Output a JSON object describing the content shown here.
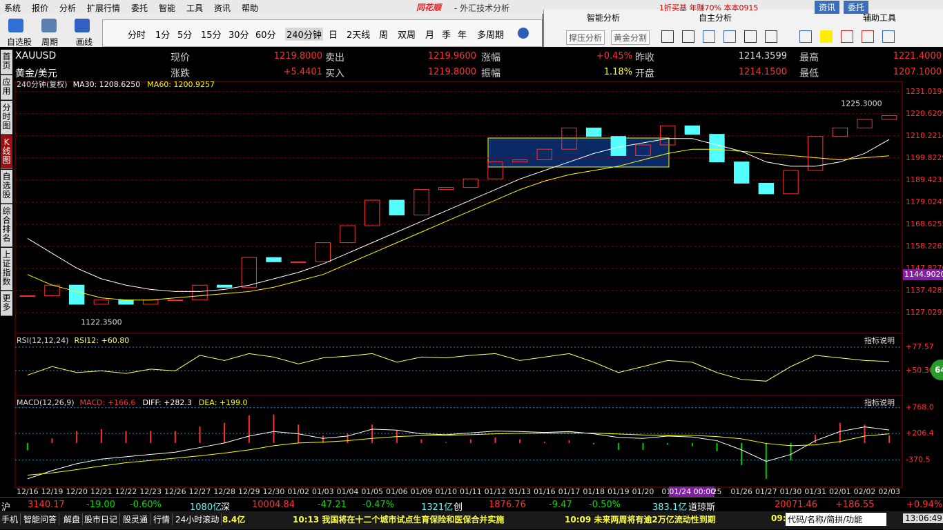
{
  "menu": [
    "系统",
    "报价",
    "分析",
    "扩展行情",
    "委托",
    "智能",
    "工具",
    "资讯",
    "帮助"
  ],
  "app_title": "同花顺",
  "window_title": "- 外汇技术分析",
  "top_right": {
    "promo": "1折买基 年赚70%  本本0915",
    "buttons": [
      "资讯",
      "委托"
    ]
  },
  "toolbar_left": [
    "自选股",
    "周期",
    "画线"
  ],
  "periods": [
    "分时",
    "1分",
    "5分",
    "15分",
    "30分",
    "60分",
    "240分钟",
    "日",
    "2天线",
    "周",
    "双周",
    "月",
    "季",
    "年",
    "多周期"
  ],
  "panel_tabs": [
    "智能分析",
    "自主分析",
    "辅助工具"
  ],
  "smart_buttons": [
    "撑压分析",
    "黄金分割"
  ],
  "quote": {
    "symbol": "XAUUSD",
    "name": "黄金/美元",
    "rows": [
      [
        [
          "现价",
          "1219.8000"
        ],
        [
          "卖出",
          "1219.9600"
        ],
        [
          "涨幅",
          "+0.45%"
        ],
        [
          "昨收",
          "1214.3599"
        ],
        [
          "最高",
          "1221.4000"
        ]
      ],
      [
        [
          "涨跌",
          "+5.4401"
        ],
        [
          "买入",
          "1219.8000"
        ],
        [
          "振幅",
          "1.18%"
        ],
        [
          "开盘",
          "1214.1500"
        ],
        [
          "最低",
          "1207.1000"
        ]
      ]
    ]
  },
  "side_tabs": [
    "首页",
    "应用",
    "分时图",
    "K线图",
    "自选股",
    "综合排名",
    "上证指数",
    "更多"
  ],
  "badge": "64",
  "chart_data": [
    {
      "type": "candlestick",
      "title": "240分钟(复权)",
      "categories": [
        "12/16",
        "12/19",
        "12/20",
        "12/21",
        "12/22",
        "12/23",
        "12/26",
        "12/27",
        "12/28",
        "12/29",
        "12/30",
        "01/02",
        "01/03",
        "01/04",
        "01/05",
        "01/06",
        "01/09",
        "01/10",
        "01/11",
        "01/12",
        "01/13",
        "01/16",
        "01/17",
        "01/18",
        "01/19",
        "01/20",
        "01/",
        null,
        "25",
        "01/26",
        "01/27",
        "01/30",
        "01/31",
        "02/01",
        "02/02",
        "02/03"
      ],
      "series": [
        {
          "name": "XAUUSD",
          "color": "#ff3232",
          "down_color": "#54ffff",
          "values": [
            1135,
            1140,
            1131,
            1133,
            1131,
            1133,
            1133,
            1140,
            1139,
            1153,
            1151,
            1151,
            1160,
            1168,
            1180,
            1173,
            1185,
            1186,
            1190,
            1198,
            1199,
            1204,
            1214,
            1210,
            1201,
            1206,
            1215,
            1211,
            1198,
            1188,
            1183,
            1194,
            1210,
            1214,
            1218,
            1219.8
          ]
        },
        {
          "name": "MA30: 1208.6250",
          "color": "#ffffff",
          "values": [
            1162,
            1155,
            1148,
            1143,
            1140,
            1138,
            1137,
            1137,
            1138,
            1140,
            1143,
            1146,
            1150,
            1155,
            1160,
            1165,
            1170,
            1175,
            1180,
            1185,
            1190,
            1194,
            1198,
            1202,
            1205,
            1207,
            1209,
            1209,
            1206,
            1203,
            1198,
            1196,
            1196,
            1198,
            1202,
            1208.6
          ]
        },
        {
          "name": "MA60: 1200.9257",
          "color": "#ffff00",
          "values": [
            1145,
            1140,
            1137,
            1134,
            1133,
            1133,
            1134,
            1135,
            1136,
            1137,
            1139,
            1142,
            1145,
            1150,
            1155,
            1160,
            1165,
            1170,
            1175,
            1180,
            1185,
            1189,
            1192,
            1194,
            1196,
            1199,
            1202,
            1204,
            1204,
            1203,
            1202,
            1201,
            1200,
            1199,
            1200,
            1200.9
          ]
        }
      ],
      "ylim": [
        1118.3,
        1232.0
      ],
      "yticks": [
        1231.0194,
        1220.6209,
        1210.2214,
        1199.8229,
        1189.4235,
        1179.0245,
        1168.6255,
        1158.2265,
        {
          "value": 1147.827,
          "label": "1147.8270"
        },
        1137.4285,
        1127.0295
      ],
      "grid": true,
      "high_label": {
        "value": 1225.3,
        "label": "1225.3000"
      },
      "low_label": {
        "value": 1122.35,
        "label": "1122.3500"
      },
      "cursor": {
        "x_label": "01/24 00:00",
        "y_label": {
          "value": 1144.902,
          "label": "1144.9020"
        }
      }
    },
    {
      "type": "line",
      "title": "RSI(12,12,24)",
      "button": "指标说明",
      "series": [
        {
          "name": "RSI12: +60.80",
          "color": "#ffff66",
          "values": [
            45,
            55,
            48,
            50,
            47,
            52,
            50,
            68,
            62,
            70,
            66,
            58,
            65,
            67,
            70,
            60,
            66,
            65,
            68,
            70,
            62,
            66,
            70,
            60,
            48,
            55,
            62,
            60,
            48,
            40,
            38,
            55,
            68,
            65,
            62,
            60.8
          ]
        }
      ],
      "ylim": [
        22.2,
        92
      ],
      "yticks": [
        {
          "value": 77.57,
          "label": "+77.57"
        },
        {
          "value": 50.3,
          "label": "+50.30"
        }
      ]
    },
    {
      "type": "macd",
      "title": "MACD(12,26,9)",
      "button": "指标说明",
      "series": [
        {
          "name": "MACD: +166.6",
          "color": "#ff3232",
          "down_color": "#00cc00",
          "values": [
            -160,
            100,
            260,
            300,
            260,
            260,
            260,
            360,
            440,
            600,
            620,
            400,
            160,
            200,
            400,
            280,
            80,
            20,
            80,
            120,
            80,
            30,
            60,
            -30,
            -150,
            -150,
            -40,
            -70,
            -180,
            -480,
            -780,
            -380,
            180,
            440,
            400,
            166.6
          ]
        },
        {
          "name": "DIFF: +282.3",
          "color": "#ffffff",
          "values": [
            -780,
            -600,
            -450,
            -350,
            -300,
            -250,
            -200,
            -100,
            0,
            150,
            250,
            200,
            100,
            150,
            300,
            280,
            200,
            180,
            220,
            260,
            250,
            230,
            250,
            200,
            120,
            100,
            150,
            130,
            50,
            -150,
            -400,
            -250,
            50,
            250,
            350,
            282.3
          ]
        },
        {
          "name": "DEA: +199.0",
          "color": "#ffff00",
          "values": [
            -700,
            -650,
            -580,
            -500,
            -430,
            -380,
            -330,
            -280,
            -220,
            -150,
            -60,
            0,
            20,
            50,
            100,
            140,
            160,
            170,
            180,
            200,
            210,
            215,
            220,
            215,
            195,
            175,
            170,
            165,
            140,
            90,
            -10,
            -60,
            -40,
            30,
            150,
            199.0
          ]
        }
      ],
      "ylim": [
        -947,
        1004
      ],
      "yticks": [
        {
          "value": 768,
          "label": "+768.0"
        },
        {
          "value": 206.4,
          "label": "+206.4"
        },
        {
          "value": -370.5,
          "label": "-370.5"
        }
      ]
    }
  ],
  "status_bar": {
    "indices": [
      [
        "沪",
        "3140.17",
        "-19.00",
        "-0.60%",
        "1080亿"
      ],
      [
        "深",
        "10004.84",
        "-47.21",
        "-0.47%",
        "1321亿"
      ],
      [
        "创",
        "1876.76",
        "-9.47",
        "-0.50%",
        "383.1亿"
      ],
      [
        "道琼斯",
        "20071.46",
        "+186.55",
        "+0.94%"
      ]
    ],
    "tabs": [
      "手机",
      "智能问答",
      "解盘",
      "股市日记",
      "股灵通",
      "行情",
      "24小时滚动"
    ],
    "amount": "8.4亿",
    "news": [
      "10:13 我国将在十二个城市试点生育保险和医保合并实施",
      "10:09 未来两周将有逾2万亿流动性到期",
      "09:"
    ],
    "search": "代码/名称/简拼/功能",
    "time": "13:06:49"
  }
}
